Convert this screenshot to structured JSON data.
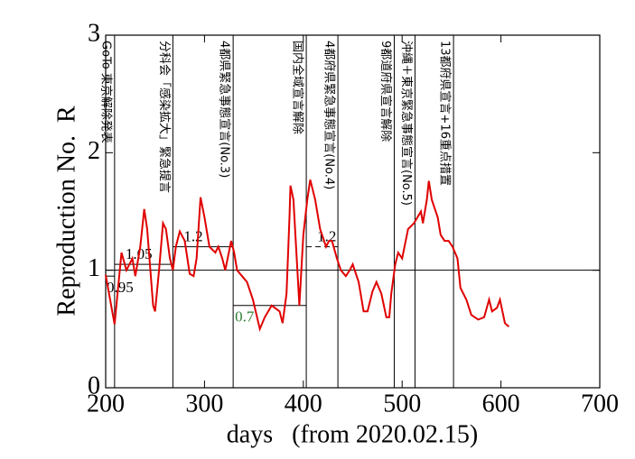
{
  "chart_data": {
    "type": "line",
    "x_label": "days   (from 2020.02.15)",
    "y_label": "Reproduction No.  R",
    "xlim": [
      200,
      700
    ],
    "xticks": [
      200,
      300,
      400,
      500,
      600,
      700
    ],
    "ylim": [
      0,
      3
    ],
    "yticks": [
      0,
      1,
      2,
      3
    ],
    "reference_line": 1,
    "series": [
      {
        "color": "#e00000",
        "x": [
          200,
          209,
          216,
          221,
          227,
          230,
          235,
          239,
          242,
          248,
          250,
          254,
          258,
          261,
          265,
          268,
          271,
          275,
          280,
          285,
          289,
          292,
          296,
          300,
          305,
          311,
          314,
          318,
          321,
          327,
          330,
          333,
          338,
          343,
          349,
          356,
          361,
          368,
          376,
          379,
          383,
          386,
          387,
          390,
          394,
          396,
          400,
          404,
          407,
          412,
          417,
          423,
          426,
          429,
          434,
          438,
          443,
          447,
          450,
          456,
          461,
          465,
          470,
          474,
          479,
          484,
          487,
          489,
          493,
          496,
          500,
          506,
          512,
          519,
          521,
          525,
          527,
          530,
          536,
          539,
          543,
          547,
          551,
          556,
          559,
          565,
          570,
          577,
          583,
          588,
          591,
          596,
          599,
          604,
          608
        ],
        "values": [
          0.96,
          0.54,
          1.15,
          1.0,
          1.1,
          0.95,
          1.2,
          1.52,
          1.35,
          0.7,
          0.65,
          1.0,
          1.4,
          1.35,
          1.1,
          1.0,
          1.2,
          1.33,
          1.25,
          0.97,
          0.95,
          1.1,
          1.62,
          1.45,
          1.2,
          1.15,
          1.2,
          1.1,
          1.0,
          1.25,
          1.15,
          1.0,
          0.95,
          0.9,
          0.75,
          0.5,
          0.6,
          0.7,
          0.65,
          0.55,
          0.8,
          1.45,
          1.72,
          1.6,
          1.0,
          0.7,
          1.3,
          1.6,
          1.77,
          1.6,
          1.35,
          1.2,
          1.25,
          1.25,
          1.1,
          1.0,
          0.95,
          1.0,
          1.05,
          0.9,
          0.65,
          0.65,
          0.82,
          0.9,
          0.8,
          0.6,
          0.6,
          0.8,
          1.05,
          1.15,
          1.1,
          1.35,
          1.4,
          1.5,
          1.4,
          1.6,
          1.76,
          1.6,
          1.45,
          1.3,
          1.25,
          1.25,
          1.2,
          1.1,
          0.85,
          0.75,
          0.62,
          0.58,
          0.6,
          0.75,
          0.65,
          0.68,
          0.75,
          0.55,
          0.52
        ]
      }
    ],
    "segments": [
      {
        "value": 0.95,
        "x": [
          200,
          209
        ]
      },
      {
        "value": 1.05,
        "x": [
          209,
          268
        ]
      },
      {
        "value": 1.2,
        "x": [
          268,
          329
        ]
      },
      {
        "value": 0.7,
        "x": [
          329,
          403
        ],
        "color": "#2e7d32"
      },
      {
        "value": 1.2,
        "x": [
          403,
          435
        ],
        "dashed": true
      }
    ],
    "events": [
      {
        "day": 209,
        "label": "GoTo 東京解除発表"
      },
      {
        "day": 268,
        "label": "分科会「感染拡大」緊急提言"
      },
      {
        "day": 329,
        "label": "4都県緊急事態宣言(No.3)"
      },
      {
        "day": 403,
        "label": "国内全域宣言解除"
      },
      {
        "day": 435,
        "label": "4都府県緊急事態宣言(No.4)"
      },
      {
        "day": 492,
        "label": "9都道府県宣言解除"
      },
      {
        "day": 513,
        "label": "沖縄＋東京緊急事態宣言(No.5)"
      },
      {
        "day": 552,
        "label": "13都府県宣言+16重点措置"
      }
    ]
  }
}
